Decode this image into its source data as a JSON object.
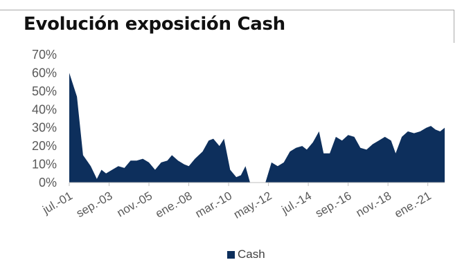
{
  "title": "Evolución exposición Cash",
  "chart_data": {
    "type": "area",
    "title": "Evolución exposición Cash",
    "xlabel": "",
    "ylabel": "",
    "ylim": [
      0,
      0.7
    ],
    "y_tick_labels": [
      "0%",
      "10%",
      "20%",
      "30%",
      "40%",
      "50%",
      "60%",
      "70%"
    ],
    "x_range": [
      "2001-07",
      "2021-12"
    ],
    "x_tick_labels": [
      {
        "label": "jul.-01",
        "date": "2001-07"
      },
      {
        "label": "sep.-03",
        "date": "2003-09"
      },
      {
        "label": "nov.-05",
        "date": "2005-11"
      },
      {
        "label": "ene.-08",
        "date": "2008-01"
      },
      {
        "label": "mar.-10",
        "date": "2010-03"
      },
      {
        "label": "may.-12",
        "date": "2012-05"
      },
      {
        "label": "jul.-14",
        "date": "2014-07"
      },
      {
        "label": "sep.-16",
        "date": "2016-09"
      },
      {
        "label": "nov.-18",
        "date": "2018-11"
      },
      {
        "label": "ene.-21",
        "date": "2021-01"
      }
    ],
    "grid": false,
    "legend_position": "bottom",
    "series": [
      {
        "name": "Cash",
        "color": "#0d2f5c",
        "points": [
          [
            "2001-07",
            0.6
          ],
          [
            "2001-12",
            0.47
          ],
          [
            "2002-04",
            0.15
          ],
          [
            "2002-09",
            0.09
          ],
          [
            "2003-01",
            0.02
          ],
          [
            "2003-04",
            0.07
          ],
          [
            "2003-07",
            0.05
          ],
          [
            "2003-11",
            0.07
          ],
          [
            "2004-03",
            0.09
          ],
          [
            "2004-07",
            0.08
          ],
          [
            "2004-11",
            0.12
          ],
          [
            "2005-03",
            0.12
          ],
          [
            "2005-07",
            0.13
          ],
          [
            "2005-11",
            0.11
          ],
          [
            "2006-03",
            0.07
          ],
          [
            "2006-07",
            0.11
          ],
          [
            "2006-11",
            0.12
          ],
          [
            "2007-02",
            0.15
          ],
          [
            "2007-06",
            0.12
          ],
          [
            "2007-10",
            0.1
          ],
          [
            "2008-01",
            0.09
          ],
          [
            "2008-05",
            0.13
          ],
          [
            "2008-10",
            0.17
          ],
          [
            "2009-02",
            0.23
          ],
          [
            "2009-05",
            0.24
          ],
          [
            "2009-09",
            0.2
          ],
          [
            "2009-12",
            0.24
          ],
          [
            "2010-04",
            0.07
          ],
          [
            "2010-08",
            0.03
          ],
          [
            "2010-11",
            0.04
          ],
          [
            "2011-02",
            0.09
          ],
          [
            "2011-05",
            0.0
          ],
          [
            "2011-08",
            0.0
          ],
          [
            "2011-11",
            0.0
          ],
          [
            "2012-03",
            0.0
          ],
          [
            "2012-07",
            0.11
          ],
          [
            "2012-11",
            0.09
          ],
          [
            "2013-03",
            0.11
          ],
          [
            "2013-07",
            0.17
          ],
          [
            "2013-11",
            0.19
          ],
          [
            "2014-03",
            0.2
          ],
          [
            "2014-06",
            0.18
          ],
          [
            "2014-10",
            0.22
          ],
          [
            "2015-02",
            0.28
          ],
          [
            "2015-05",
            0.16
          ],
          [
            "2015-09",
            0.16
          ],
          [
            "2016-01",
            0.25
          ],
          [
            "2016-05",
            0.23
          ],
          [
            "2016-09",
            0.26
          ],
          [
            "2017-01",
            0.25
          ],
          [
            "2017-05",
            0.19
          ],
          [
            "2017-09",
            0.18
          ],
          [
            "2018-01",
            0.21
          ],
          [
            "2018-05",
            0.23
          ],
          [
            "2018-09",
            0.25
          ],
          [
            "2019-01",
            0.23
          ],
          [
            "2019-04",
            0.16
          ],
          [
            "2019-08",
            0.25
          ],
          [
            "2019-12",
            0.28
          ],
          [
            "2020-04",
            0.27
          ],
          [
            "2020-08",
            0.28
          ],
          [
            "2020-12",
            0.3
          ],
          [
            "2021-03",
            0.31
          ],
          [
            "2021-06",
            0.29
          ],
          [
            "2021-09",
            0.28
          ],
          [
            "2021-12",
            0.3
          ]
        ]
      }
    ]
  }
}
